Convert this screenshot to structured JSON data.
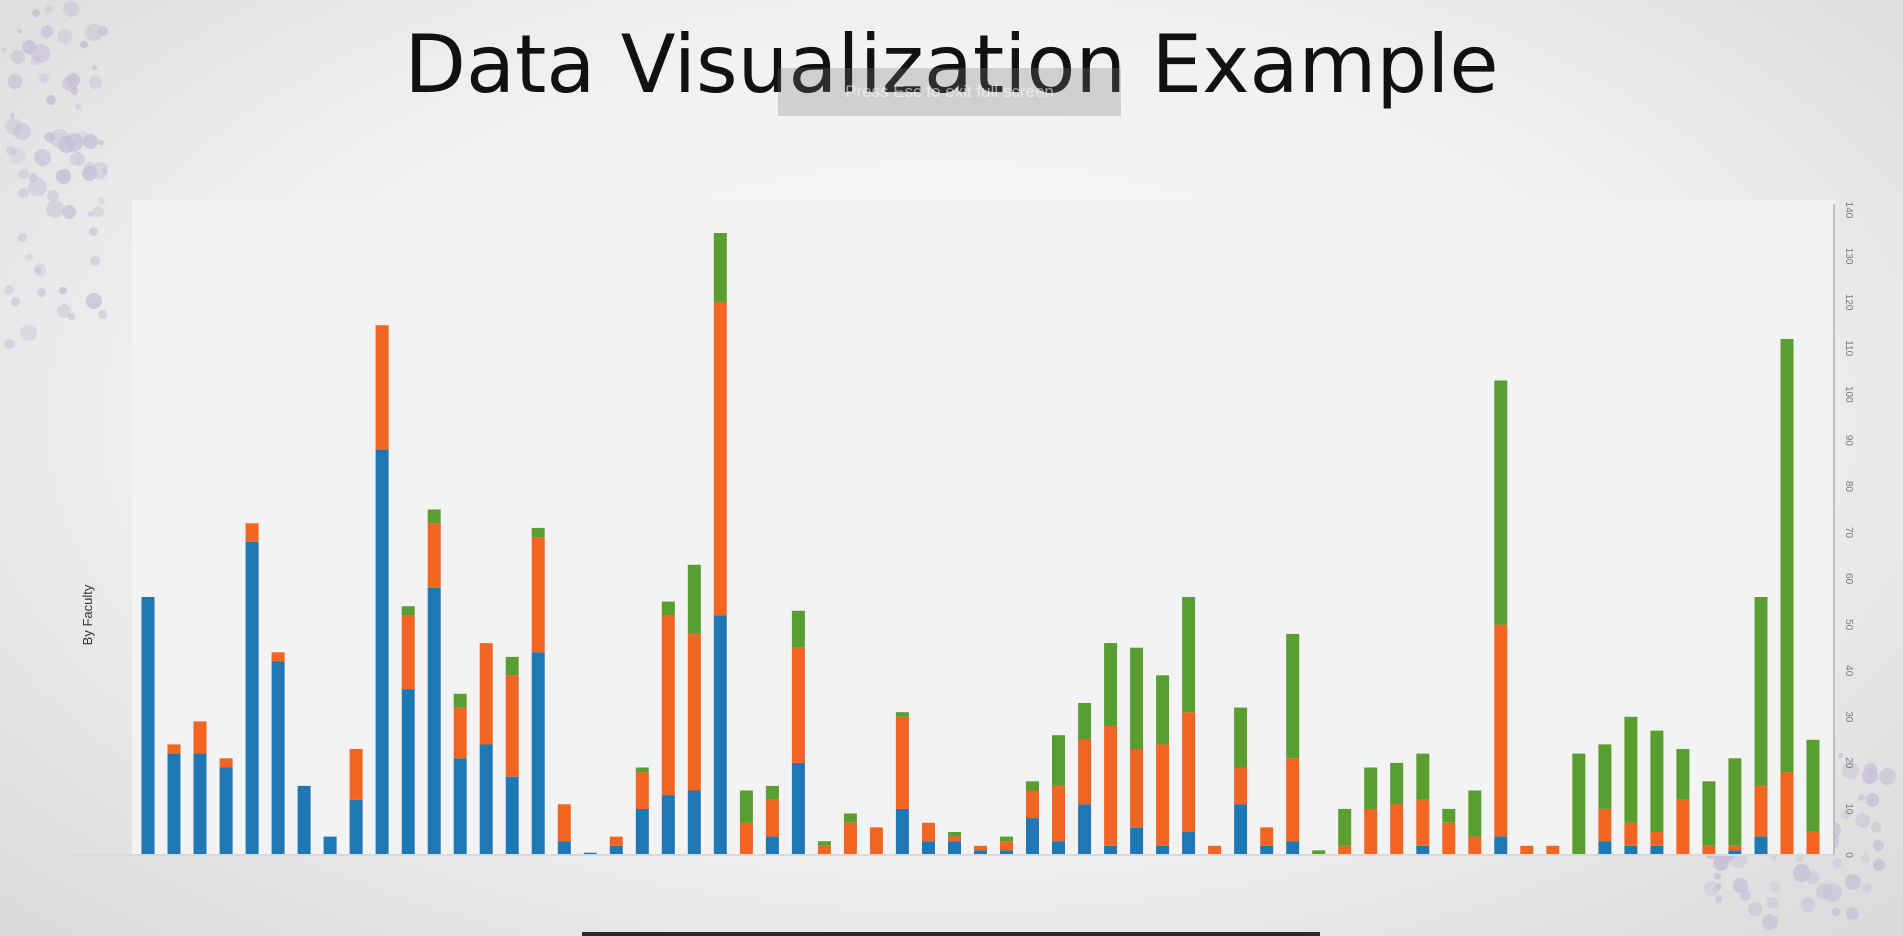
{
  "slide": {
    "title": "Data Visualization Example",
    "toast": "Press Esc to exit full screen"
  },
  "colors": {
    "blue": "#1f77b4",
    "orange": "#f26522",
    "green": "#5a9e32"
  },
  "chart_data": {
    "type": "bar",
    "stacked": true,
    "ylabel": "By Faculty",
    "ylim": [
      0,
      140
    ],
    "y_axis_side": "right",
    "yticks": [
      "0",
      "10",
      "20",
      "30",
      "40",
      "50",
      "60",
      "70",
      "80",
      "90",
      "100",
      "110",
      "120",
      "130",
      "140"
    ],
    "grid": false,
    "series": [
      {
        "color": "blue",
        "values": [
          56,
          22,
          22,
          19,
          68,
          42,
          15,
          4,
          12,
          88,
          36,
          58,
          21,
          24,
          17,
          44,
          3,
          0.5,
          2,
          10,
          13,
          14,
          52,
          0,
          4,
          20,
          0,
          0,
          0,
          10,
          3,
          3,
          1,
          1,
          8,
          3,
          11,
          2,
          6,
          2,
          5,
          0,
          11,
          2,
          3,
          0,
          0,
          0,
          0,
          2,
          0,
          0,
          4,
          0,
          0,
          0,
          3,
          2,
          2,
          0,
          0,
          1,
          4,
          0,
          0
        ]
      },
      {
        "color": "orange",
        "values": [
          0,
          2,
          7,
          2,
          4,
          2,
          0,
          0,
          11,
          27,
          16,
          14,
          11,
          22,
          22,
          25,
          8,
          0,
          2,
          8,
          39,
          34,
          68,
          7,
          8,
          25,
          2,
          7,
          6,
          20,
          4,
          1,
          1,
          2,
          6,
          12,
          14,
          26,
          17,
          22,
          26,
          2,
          8,
          4,
          18,
          0,
          2,
          10,
          11,
          10,
          7,
          4,
          46,
          2,
          2,
          0,
          7,
          5,
          3,
          12,
          2,
          1,
          11,
          18,
          5
        ]
      },
      {
        "color": "green",
        "values": [
          0,
          0,
          0,
          0,
          0,
          0,
          0,
          0,
          0,
          0,
          2,
          3,
          3,
          0,
          4,
          2,
          0,
          0,
          0,
          1,
          3,
          15,
          15,
          7,
          3,
          8,
          1,
          2,
          0,
          1,
          0,
          1,
          0,
          1,
          2,
          11,
          8,
          18,
          22,
          15,
          25,
          0,
          13,
          0,
          27,
          1,
          8,
          9,
          9,
          10,
          3,
          10,
          53,
          0,
          0,
          22,
          14,
          23,
          22,
          11,
          14,
          19,
          41,
          94,
          20
        ]
      }
    ]
  }
}
